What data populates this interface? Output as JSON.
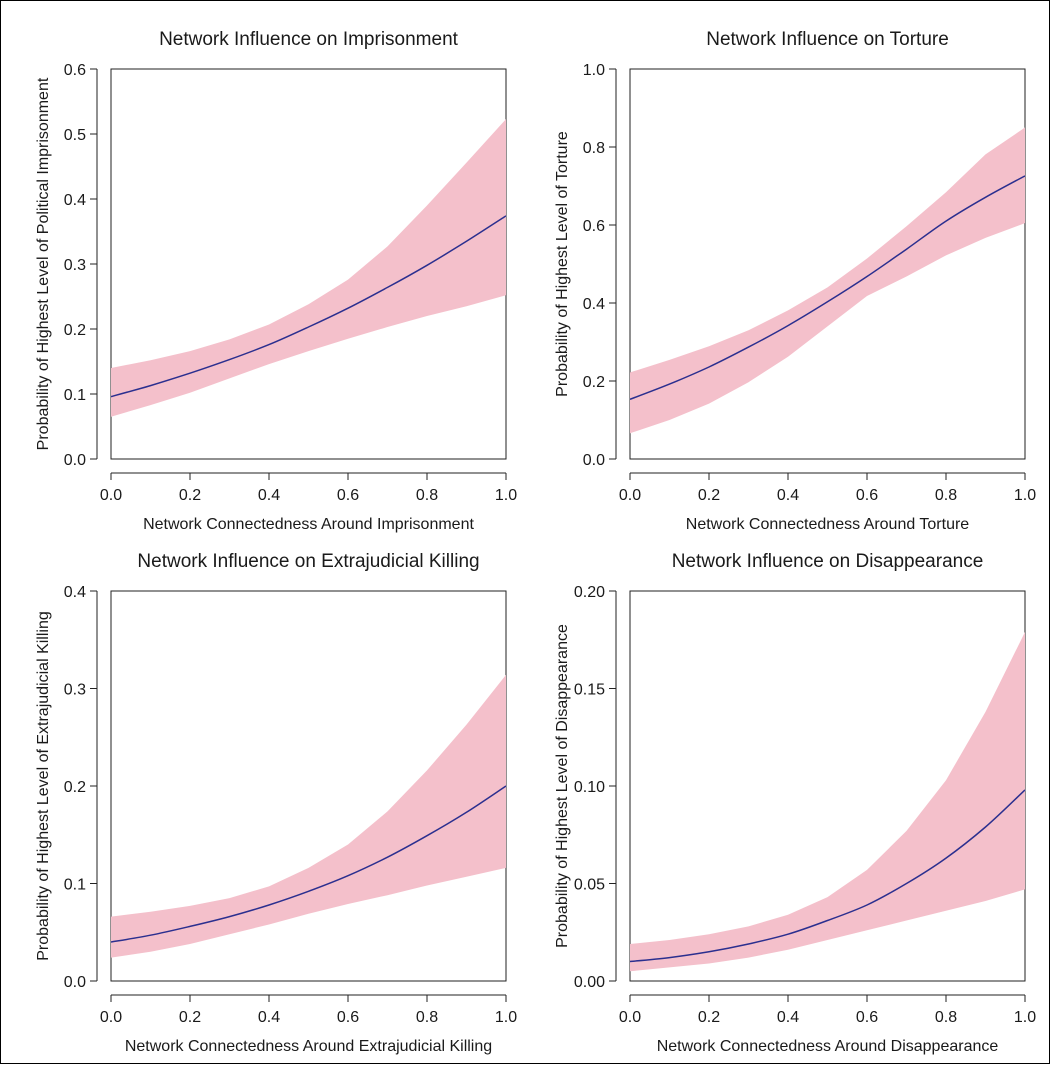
{
  "colors": {
    "band": "#f4c0cb",
    "line": "#2b2f8f",
    "axis": "#222222"
  },
  "chart_data": [
    {
      "type": "line",
      "title": "Network Influence on Imprisonment",
      "xlabel": "Network Connectedness Around Imprisonment",
      "ylabel": "Probability of Highest Level of Political Imprisonment",
      "xlim": [
        0,
        1
      ],
      "ylim": [
        0,
        0.6
      ],
      "xticks": [
        "0.0",
        "0.2",
        "0.4",
        "0.6",
        "0.8",
        "1.0"
      ],
      "yticks": [
        "0.0",
        "0.1",
        "0.2",
        "0.3",
        "0.4",
        "0.5",
        "0.6"
      ],
      "x": [
        0,
        0.1,
        0.2,
        0.3,
        0.4,
        0.5,
        0.6,
        0.7,
        0.8,
        0.9,
        1.0
      ],
      "series": [
        {
          "values": [
            0.096,
            0.113,
            0.132,
            0.153,
            0.176,
            0.203,
            0.232,
            0.264,
            0.298,
            0.335,
            0.374
          ]
        }
      ],
      "band": {
        "lower": [
          0.065,
          0.083,
          0.102,
          0.124,
          0.146,
          0.166,
          0.185,
          0.203,
          0.22,
          0.235,
          0.252
        ],
        "upper": [
          0.14,
          0.152,
          0.166,
          0.184,
          0.207,
          0.238,
          0.276,
          0.327,
          0.39,
          0.456,
          0.523
        ]
      }
    },
    {
      "type": "line",
      "title": "Network Influence on Torture",
      "xlabel": "Network Connectedness Around Torture",
      "ylabel": "Probability of Highest Level of Torture",
      "xlim": [
        0,
        1
      ],
      "ylim": [
        0,
        1
      ],
      "xticks": [
        "0.0",
        "0.2",
        "0.4",
        "0.6",
        "0.8",
        "1.0"
      ],
      "yticks": [
        "0.0",
        "0.2",
        "0.4",
        "0.6",
        "0.8",
        "1.0"
      ],
      "x": [
        0,
        0.1,
        0.2,
        0.3,
        0.4,
        0.5,
        0.6,
        0.7,
        0.8,
        0.9,
        1.0
      ],
      "series": [
        {
          "values": [
            0.153,
            0.192,
            0.236,
            0.287,
            0.342,
            0.403,
            0.468,
            0.538,
            0.61,
            0.671,
            0.726
          ]
        }
      ],
      "band": {
        "lower": [
          0.066,
          0.1,
          0.142,
          0.197,
          0.262,
          0.34,
          0.418,
          0.468,
          0.522,
          0.567,
          0.605
        ],
        "upper": [
          0.222,
          0.254,
          0.289,
          0.33,
          0.381,
          0.44,
          0.514,
          0.597,
          0.684,
          0.781,
          0.85
        ]
      }
    },
    {
      "type": "line",
      "title": "Network Influence on Extrajudicial Killing",
      "xlabel": "Network Connectedness Around Extrajudicial Killing",
      "ylabel": "Probability of Highest Level of Extrajudicial Killing",
      "xlim": [
        0,
        1
      ],
      "ylim": [
        0,
        0.4
      ],
      "xticks": [
        "0.0",
        "0.2",
        "0.4",
        "0.6",
        "0.8",
        "1.0"
      ],
      "yticks": [
        "0.0",
        "0.1",
        "0.2",
        "0.3",
        "0.4"
      ],
      "x": [
        0,
        0.1,
        0.2,
        0.3,
        0.4,
        0.5,
        0.6,
        0.7,
        0.8,
        0.9,
        1.0
      ],
      "series": [
        {
          "values": [
            0.04,
            0.047,
            0.056,
            0.066,
            0.078,
            0.092,
            0.108,
            0.127,
            0.149,
            0.173,
            0.2
          ]
        }
      ],
      "band": {
        "lower": [
          0.024,
          0.03,
          0.038,
          0.048,
          0.058,
          0.069,
          0.079,
          0.088,
          0.098,
          0.107,
          0.116
        ],
        "upper": [
          0.066,
          0.071,
          0.077,
          0.085,
          0.097,
          0.116,
          0.14,
          0.174,
          0.216,
          0.263,
          0.314
        ]
      }
    },
    {
      "type": "line",
      "title": "Network Influence on Disappearance",
      "xlabel": "Network Connectedness Around Disappearance",
      "ylabel": "Probability of Highest Level of Disappearance",
      "xlim": [
        0,
        1
      ],
      "ylim": [
        0,
        0.2
      ],
      "xticks": [
        "0.0",
        "0.2",
        "0.4",
        "0.6",
        "0.8",
        "1.0"
      ],
      "yticks": [
        "0.00",
        "0.05",
        "0.10",
        "0.15",
        "0.20"
      ],
      "x": [
        0,
        0.1,
        0.2,
        0.3,
        0.4,
        0.5,
        0.6,
        0.7,
        0.8,
        0.9,
        1.0
      ],
      "series": [
        {
          "values": [
            0.01,
            0.012,
            0.015,
            0.019,
            0.024,
            0.031,
            0.039,
            0.05,
            0.063,
            0.079,
            0.098
          ]
        }
      ],
      "band": {
        "lower": [
          0.005,
          0.007,
          0.009,
          0.012,
          0.016,
          0.021,
          0.026,
          0.031,
          0.036,
          0.041,
          0.047
        ],
        "upper": [
          0.019,
          0.021,
          0.024,
          0.028,
          0.034,
          0.043,
          0.057,
          0.077,
          0.103,
          0.138,
          0.179
        ]
      }
    }
  ]
}
